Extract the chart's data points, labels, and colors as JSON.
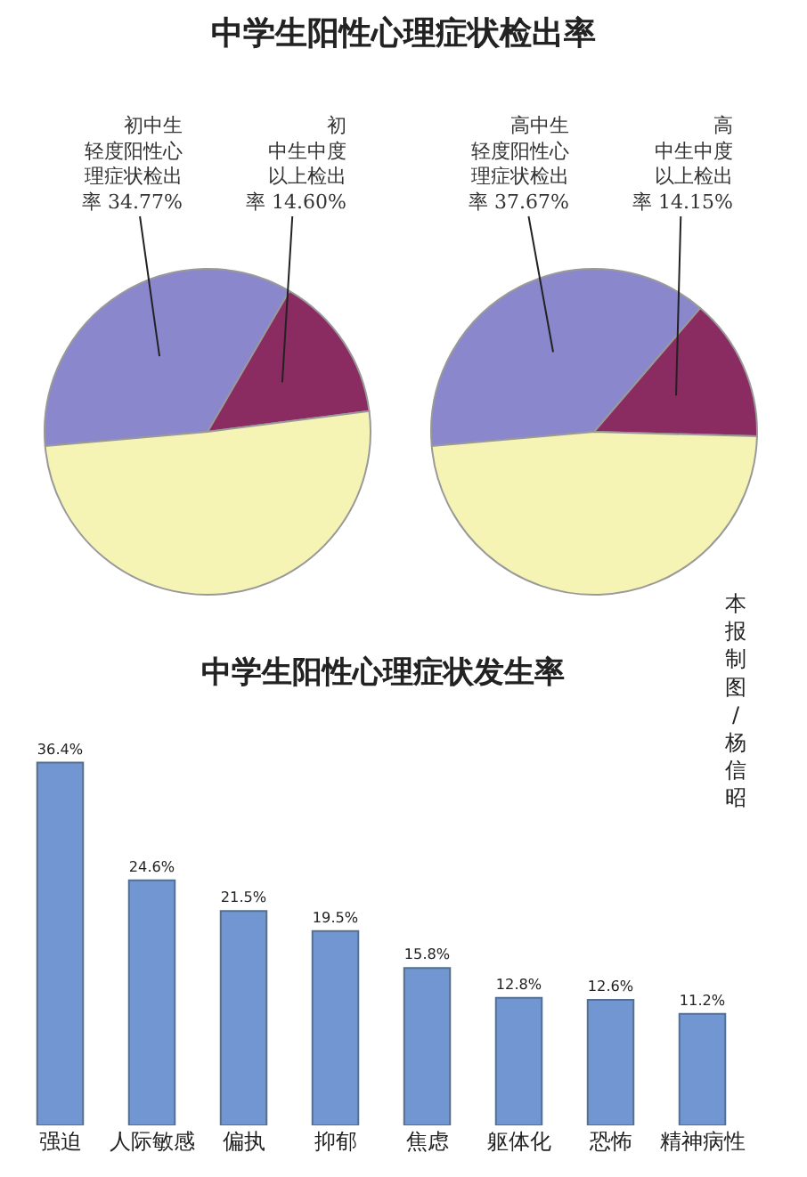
{
  "chart_data": [
    {
      "type": "pie",
      "title": "中学生阳性心理症状检出率",
      "categories": [
        "初中生轻度阳性心理症状检出率 34.77%",
        "初中生中度以上检出率 14.60%",
        null
      ],
      "values": [
        34.77,
        14.6,
        50.63
      ],
      "colors": [
        "#8b87cc",
        "#8a2b62",
        "#f6f4b4"
      ]
    },
    {
      "type": "pie",
      "categories": [
        "高中生轻度阳性心理症状检出率 37.67%",
        "高中生中度以上检出率 14.15%",
        null
      ],
      "values": [
        37.67,
        14.15,
        48.18
      ],
      "colors": [
        "#8b87cc",
        "#8a2b62",
        "#f6f4b4"
      ]
    },
    {
      "type": "bar",
      "title": "中学生阳性心理症状发生率",
      "categories": [
        "强迫",
        "人际敏感",
        "偏执",
        "抑郁",
        "焦虑",
        "躯体化",
        "恐怖",
        "精神病性"
      ],
      "values": [
        36.4,
        24.6,
        21.5,
        19.5,
        15.8,
        12.8,
        12.6,
        11.2
      ],
      "value_labels": [
        "36.4%",
        "24.6%",
        "21.5%",
        "19.5%",
        "15.8%",
        "12.8%",
        "12.6%",
        "11.2%"
      ],
      "color": "#7196d2",
      "tick_labels": "x",
      "annotations": [
        "本报制图/杨信昭"
      ]
    }
  ]
}
